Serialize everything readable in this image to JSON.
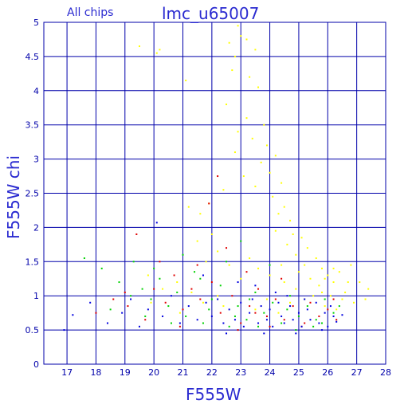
{
  "chart_data": {
    "type": "scatter",
    "title": "lmc_u65007",
    "subtitle": "All chips",
    "xlabel": "F555W",
    "ylabel": "F555W chi",
    "xlim": [
      16.2,
      28
    ],
    "ylim": [
      0,
      5
    ],
    "xticks": [
      17,
      18,
      19,
      20,
      21,
      22,
      23,
      24,
      25,
      26,
      27,
      28
    ],
    "xtick_labels": [
      "17",
      "18",
      "19",
      "20",
      "21",
      "22",
      "23",
      "24",
      "25",
      "26",
      "27",
      "28"
    ],
    "yticks": [
      0,
      0.5,
      1,
      1.5,
      2,
      2.5,
      3,
      3.5,
      4,
      4.5,
      5
    ],
    "ytick_labels": [
      "0",
      "0.5",
      "1",
      "1.5",
      "2",
      "2.5",
      "3",
      "3.5",
      "4",
      "4.5",
      "5"
    ],
    "grid": true,
    "colors": {
      "axis": "#0000aa",
      "grid": "#0000aa",
      "text": "#2a2ad0"
    },
    "series": [
      {
        "color": "#ffff00",
        "points": [
          [
            19.5,
            4.65
          ],
          [
            20.1,
            4.55
          ],
          [
            20.2,
            4.6
          ],
          [
            21.1,
            4.15
          ],
          [
            22.9,
            4.95
          ],
          [
            23.0,
            4.8
          ],
          [
            23.2,
            4.75
          ],
          [
            22.6,
            4.7
          ],
          [
            22.8,
            4.5
          ],
          [
            23.5,
            4.6
          ],
          [
            23.3,
            4.2
          ],
          [
            22.7,
            4.3
          ],
          [
            23.6,
            4.05
          ],
          [
            22.5,
            3.8
          ],
          [
            23.2,
            3.6
          ],
          [
            23.8,
            3.5
          ],
          [
            23.4,
            3.3
          ],
          [
            22.9,
            3.4
          ],
          [
            23.9,
            3.2
          ],
          [
            24.2,
            3.05
          ],
          [
            23.7,
            2.95
          ],
          [
            22.8,
            3.1
          ],
          [
            24.0,
            2.8
          ],
          [
            23.1,
            2.75
          ],
          [
            24.4,
            2.65
          ],
          [
            23.5,
            2.6
          ],
          [
            22.4,
            2.55
          ],
          [
            21.9,
            2.35
          ],
          [
            21.2,
            2.3
          ],
          [
            21.6,
            2.2
          ],
          [
            24.1,
            2.45
          ],
          [
            24.3,
            2.2
          ],
          [
            24.5,
            2.3
          ],
          [
            24.7,
            2.1
          ],
          [
            24.2,
            1.95
          ],
          [
            24.8,
            1.9
          ],
          [
            25.1,
            1.85
          ],
          [
            24.6,
            1.75
          ],
          [
            25.3,
            1.7
          ],
          [
            24.9,
            1.6
          ],
          [
            25.6,
            1.55
          ],
          [
            25.2,
            1.45
          ],
          [
            25.8,
            1.4
          ],
          [
            26.0,
            1.3
          ],
          [
            26.4,
            1.35
          ],
          [
            26.8,
            1.45
          ],
          [
            27.1,
            1.2
          ],
          [
            27.4,
            1.1
          ],
          [
            26.6,
            1.05
          ],
          [
            27.3,
            0.95
          ],
          [
            26.9,
            0.9
          ],
          [
            26.2,
            1.2
          ],
          [
            25.7,
            1.15
          ],
          [
            25.4,
            1.25
          ],
          [
            22.0,
            1.9
          ],
          [
            21.5,
            1.8
          ],
          [
            22.2,
            1.65
          ],
          [
            21.8,
            1.5
          ],
          [
            22.6,
            1.45
          ],
          [
            23.3,
            1.55
          ],
          [
            23.6,
            1.4
          ],
          [
            24.0,
            1.3
          ],
          [
            23.0,
            1.25
          ],
          [
            24.5,
            1.2
          ],
          [
            24.9,
            1.1
          ],
          [
            25.5,
            1.0
          ],
          [
            26.1,
            1.0
          ],
          [
            25.9,
            0.85
          ],
          [
            26.3,
            0.8
          ],
          [
            20.8,
            1.2
          ],
          [
            20.3,
            1.1
          ],
          [
            19.8,
            1.3
          ],
          [
            21.3,
            1.05
          ],
          [
            22.2,
            1.0
          ],
          [
            23.9,
            0.95
          ],
          [
            24.7,
            0.9
          ],
          [
            25.2,
            0.95
          ],
          [
            25.8,
            1.05
          ],
          [
            26.5,
            0.95
          ],
          [
            22.4,
            0.85
          ],
          [
            23.5,
            0.8
          ],
          [
            24.3,
            0.75
          ],
          [
            21.7,
            0.9
          ],
          [
            20.9,
            0.75
          ],
          [
            19.9,
            0.9
          ],
          [
            25.9,
            1.25
          ],
          [
            26.2,
            1.4
          ],
          [
            26.7,
            1.2
          ],
          [
            25.0,
            1.35
          ],
          [
            24.4,
            1.45
          ]
        ]
      },
      {
        "color": "#00d200",
        "points": [
          [
            17.6,
            1.55
          ],
          [
            18.2,
            1.4
          ],
          [
            18.8,
            1.2
          ],
          [
            19.3,
            1.5
          ],
          [
            19.6,
            1.1
          ],
          [
            19.9,
            0.95
          ],
          [
            20.2,
            1.25
          ],
          [
            20.5,
            0.85
          ],
          [
            20.8,
            1.05
          ],
          [
            21.1,
            0.7
          ],
          [
            21.4,
            1.35
          ],
          [
            21.7,
            0.6
          ],
          [
            22.0,
            0.95
          ],
          [
            22.3,
            1.15
          ],
          [
            22.6,
            0.55
          ],
          [
            22.9,
            0.85
          ],
          [
            23.2,
            0.65
          ],
          [
            23.5,
            1.05
          ],
          [
            23.8,
            0.75
          ],
          [
            24.1,
            0.9
          ],
          [
            24.4,
            0.6
          ],
          [
            24.7,
            1.0
          ],
          [
            25.0,
            0.7
          ],
          [
            25.3,
            0.85
          ],
          [
            25.6,
            0.65
          ],
          [
            25.9,
            0.95
          ],
          [
            26.2,
            0.75
          ],
          [
            21.0,
            1.6
          ],
          [
            22.5,
            1.5
          ],
          [
            23.0,
            1.8
          ],
          [
            24.0,
            1.45
          ],
          [
            20.0,
            1.4
          ],
          [
            19.2,
            1.0
          ],
          [
            18.5,
            0.8
          ],
          [
            21.6,
            1.25
          ],
          [
            22.8,
            0.7
          ],
          [
            23.6,
            0.55
          ],
          [
            24.9,
            0.5
          ],
          [
            25.5,
            0.55
          ],
          [
            20.6,
            0.6
          ],
          [
            19.7,
            0.7
          ],
          [
            21.9,
            0.8
          ],
          [
            23.3,
            0.95
          ],
          [
            24.6,
            0.8
          ],
          [
            25.8,
            0.6
          ],
          [
            26.4,
            0.85
          ]
        ]
      },
      {
        "color": "#e00000",
        "points": [
          [
            18.0,
            0.75
          ],
          [
            18.6,
            0.95
          ],
          [
            19.1,
            0.85
          ],
          [
            19.4,
            1.9
          ],
          [
            19.7,
            0.65
          ],
          [
            20.0,
            1.1
          ],
          [
            20.4,
            0.9
          ],
          [
            20.7,
            1.3
          ],
          [
            21.0,
            0.8
          ],
          [
            21.3,
            1.1
          ],
          [
            21.6,
            0.95
          ],
          [
            22.0,
            1.2
          ],
          [
            22.3,
            0.75
          ],
          [
            22.7,
            1.0
          ],
          [
            23.0,
            0.6
          ],
          [
            23.3,
            0.85
          ],
          [
            23.6,
            1.1
          ],
          [
            23.9,
            0.7
          ],
          [
            24.2,
            0.95
          ],
          [
            24.5,
            0.65
          ],
          [
            24.8,
            0.85
          ],
          [
            25.1,
            0.55
          ],
          [
            25.4,
            0.9
          ],
          [
            25.7,
            0.7
          ],
          [
            26.0,
            0.8
          ],
          [
            26.3,
            0.65
          ],
          [
            22.2,
            2.75
          ],
          [
            21.9,
            2.35
          ],
          [
            22.5,
            1.7
          ],
          [
            21.5,
            1.45
          ],
          [
            23.2,
            1.35
          ],
          [
            24.4,
            1.25
          ],
          [
            20.2,
            1.5
          ],
          [
            19.0,
            1.05
          ],
          [
            22.9,
            0.5
          ],
          [
            24.0,
            0.55
          ],
          [
            25.2,
            0.6
          ],
          [
            20.9,
            0.55
          ],
          [
            26.2,
            0.95
          ],
          [
            23.5,
            0.75
          ]
        ]
      },
      {
        "color": "#0000e0",
        "points": [
          [
            16.9,
            0.5
          ],
          [
            17.2,
            0.72
          ],
          [
            17.8,
            0.9
          ],
          [
            18.4,
            0.6
          ],
          [
            18.9,
            0.75
          ],
          [
            19.2,
            0.95
          ],
          [
            19.5,
            0.55
          ],
          [
            19.8,
            0.8
          ],
          [
            20.1,
            2.07
          ],
          [
            20.3,
            0.7
          ],
          [
            20.6,
            1.0
          ],
          [
            20.9,
            0.6
          ],
          [
            21.2,
            0.85
          ],
          [
            21.5,
            0.65
          ],
          [
            21.8,
            0.9
          ],
          [
            22.0,
            0.7
          ],
          [
            22.2,
            0.95
          ],
          [
            22.4,
            0.6
          ],
          [
            22.6,
            0.8
          ],
          [
            22.8,
            0.65
          ],
          [
            23.0,
            0.9
          ],
          [
            23.1,
            0.55
          ],
          [
            23.3,
            0.75
          ],
          [
            23.4,
            0.95
          ],
          [
            23.6,
            0.6
          ],
          [
            23.7,
            0.85
          ],
          [
            23.9,
            0.65
          ],
          [
            24.0,
            0.8
          ],
          [
            24.1,
            0.55
          ],
          [
            24.3,
            0.9
          ],
          [
            24.4,
            0.7
          ],
          [
            24.5,
            0.6
          ],
          [
            24.7,
            0.85
          ],
          [
            24.8,
            0.65
          ],
          [
            25.0,
            0.75
          ],
          [
            25.1,
            0.55
          ],
          [
            25.3,
            0.8
          ],
          [
            25.4,
            0.65
          ],
          [
            25.6,
            0.9
          ],
          [
            25.7,
            0.6
          ],
          [
            25.9,
            0.75
          ],
          [
            26.0,
            0.55
          ],
          [
            26.2,
            0.7
          ],
          [
            26.3,
            0.62
          ],
          [
            26.5,
            0.72
          ],
          [
            23.5,
            1.15
          ],
          [
            24.2,
            1.05
          ],
          [
            22.9,
            1.2
          ],
          [
            21.7,
            1.3
          ],
          [
            24.6,
            1.0
          ],
          [
            25.2,
            0.95
          ],
          [
            23.8,
            0.45
          ],
          [
            24.9,
            0.45
          ],
          [
            22.5,
            0.45
          ],
          [
            26.1,
            0.85
          ],
          [
            25.8,
            0.5
          ]
        ]
      }
    ]
  }
}
